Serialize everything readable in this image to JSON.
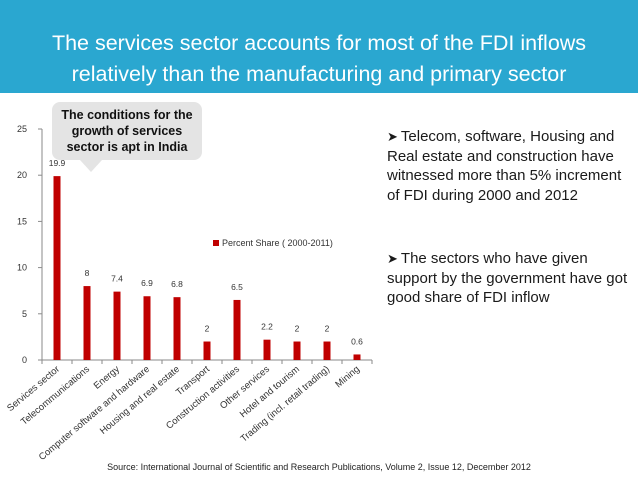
{
  "title": {
    "line1": "The services sector accounts for most of the FDI inflows",
    "line2": "relatively than the manufacturing and primary sector"
  },
  "callout": "The conditions for the growth of services sector is apt in India",
  "bullets": [
    "Telecom, software, Housing and Real estate and construction have witnessed more than 5% increment of FDI during 2000 and 2012",
    "The sectors who have given support by the government have got good share of FDI inflow"
  ],
  "source": "Source: International Journal of Scientific and Research Publications, Volume 2, Issue 12, December 2012",
  "colors": {
    "title_band": "#2aa7d0",
    "bar": "#c00000",
    "callout_bg": "#e4e4e4"
  },
  "chart_data": {
    "type": "bar",
    "categories": [
      "Services sector",
      "Telecommunications",
      "Energy",
      "Computer software and hardware",
      "Housing and real estate",
      "Transport",
      "Construction activities",
      "Other services",
      "Hotel and tourism",
      "Trading (incl. retail trading)",
      "Mining"
    ],
    "series": [
      {
        "name": "Percent Share ( 2000-2011)",
        "values": [
          19.9,
          8,
          7.4,
          6.9,
          6.8,
          2,
          6.5,
          2.2,
          2,
          2,
          0.6
        ]
      }
    ],
    "data_labels": [
      "19.9",
      "8",
      "7.4",
      "6.9",
      "6.8",
      "2",
      "6.5",
      "2.2",
      "2",
      "2",
      "0.6"
    ],
    "y_ticks": [
      "0",
      "5",
      "10",
      "15",
      "20",
      "25"
    ],
    "ylim": [
      0,
      25
    ],
    "grid": false,
    "legend_position": "right"
  }
}
